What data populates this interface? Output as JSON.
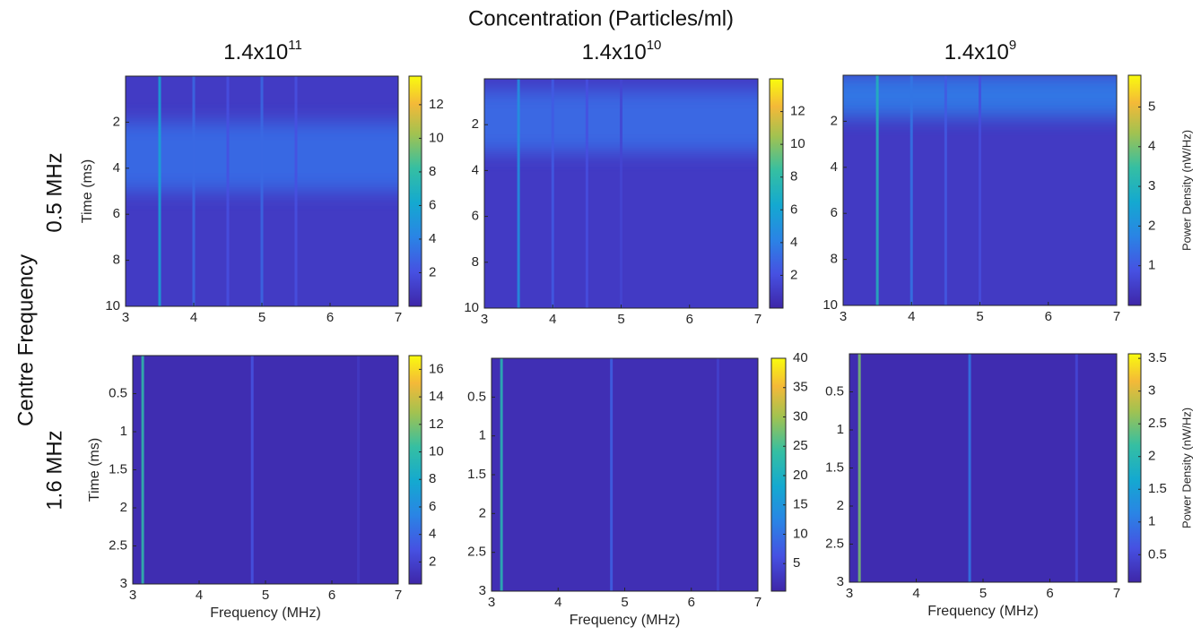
{
  "figure": {
    "title": "Concentration (Particles/ml)",
    "ylabel": "Centre Frequency",
    "columns": [
      {
        "base": "1.4x10",
        "exponent": "11"
      },
      {
        "base": "1.4x10",
        "exponent": "10"
      },
      {
        "base": "1.4x10",
        "exponent": "9"
      }
    ],
    "rows": [
      "0.5 MHz",
      "1.6 MHz"
    ]
  },
  "chart_data": [
    {
      "type": "heatmap",
      "colormap": "parula",
      "xlim": [
        3,
        7
      ],
      "xticks": [
        3,
        4,
        5,
        6,
        7
      ],
      "ylim": [
        0,
        10
      ],
      "y_reversed": true,
      "yticks": [
        2,
        4,
        6,
        8,
        10
      ],
      "ylabel": "Time (ms)",
      "clim": [
        0,
        13.7
      ],
      "cticks": [
        2,
        4,
        6,
        8,
        10,
        12
      ],
      "background": 1.0,
      "band": {
        "y": [
          2,
          5
        ],
        "value": 3
      },
      "streaks": {
        "x": [
          3.5,
          4.0,
          4.5,
          5.0,
          5.5
        ],
        "values": [
          6,
          3,
          2,
          3,
          2
        ]
      }
    },
    {
      "type": "heatmap",
      "colormap": "parula",
      "xlim": [
        3,
        7
      ],
      "xticks": [
        3,
        4,
        5,
        6,
        7
      ],
      "ylim": [
        0,
        10
      ],
      "y_reversed": true,
      "yticks": [
        2,
        4,
        6,
        8,
        10
      ],
      "clim": [
        0,
        14
      ],
      "cticks": [
        2,
        4,
        6,
        8,
        10,
        12
      ],
      "background": 1.0,
      "band": {
        "y": [
          0.5,
          3.2
        ],
        "value": 3
      },
      "streaks": {
        "x": [
          3.5,
          4.0,
          4.5,
          5.0
        ],
        "values": [
          5,
          2.5,
          2,
          1.5
        ]
      }
    },
    {
      "type": "heatmap",
      "colormap": "parula",
      "xlim": [
        3,
        7
      ],
      "xticks": [
        3,
        4,
        5,
        6,
        7
      ],
      "ylim": [
        0,
        10
      ],
      "y_reversed": true,
      "yticks": [
        2,
        4,
        6,
        8,
        10
      ],
      "clim": [
        0,
        5.8
      ],
      "cticks": [
        1,
        2,
        3,
        4,
        5
      ],
      "clabel": "Power Density (nW/Hz)",
      "background": 0.4,
      "band": {
        "y": [
          0,
          1.8
        ],
        "value": 1.5
      },
      "streaks": {
        "x": [
          3.5,
          4.0,
          4.5,
          5.0
        ],
        "values": [
          3,
          1.5,
          1,
          0.8
        ]
      }
    },
    {
      "type": "heatmap",
      "colormap": "parula",
      "xlim": [
        3,
        7
      ],
      "xticks": [
        3,
        4,
        5,
        6,
        7
      ],
      "ylim": [
        0,
        3
      ],
      "y_reversed": true,
      "yticks": [
        0.5,
        1,
        1.5,
        2,
        2.5,
        3
      ],
      "ylabel": "Time (ms)",
      "xlabel": "Frequency (MHz)",
      "clim": [
        0.4,
        17
      ],
      "cticks": [
        2,
        4,
        6,
        8,
        10,
        12,
        14,
        16
      ],
      "background": 0.8,
      "streaks": {
        "x": [
          3.15,
          4.8,
          6.4
        ],
        "values": [
          10,
          3,
          1.5
        ]
      }
    },
    {
      "type": "heatmap",
      "colormap": "parula",
      "xlim": [
        3,
        7
      ],
      "xticks": [
        3,
        4,
        5,
        6,
        7
      ],
      "ylim": [
        0,
        3
      ],
      "y_reversed": true,
      "yticks": [
        0.5,
        1,
        1.5,
        2,
        2.5,
        3
      ],
      "xlabel": "Frequency (MHz)",
      "clim": [
        0.3,
        40
      ],
      "cticks": [
        5,
        10,
        15,
        20,
        25,
        30,
        35,
        40
      ],
      "background": 1.5,
      "streaks": {
        "x": [
          3.15,
          4.8,
          6.4
        ],
        "values": [
          22,
          8,
          4
        ]
      }
    },
    {
      "type": "heatmap",
      "colormap": "parula",
      "xlim": [
        3,
        7
      ],
      "xticks": [
        3,
        4,
        5,
        6,
        7
      ],
      "ylim": [
        0,
        3
      ],
      "y_reversed": true,
      "yticks": [
        0.5,
        1,
        1.5,
        2,
        2.5,
        3
      ],
      "xlabel": "Frequency (MHz)",
      "clim": [
        0.08,
        3.57
      ],
      "cticks": [
        0.5,
        1,
        1.5,
        2,
        2.5,
        3,
        3.5
      ],
      "clabel": "Power Density (nW/Hz)",
      "background": 0.15,
      "streaks": {
        "x": [
          3.15,
          4.8,
          6.4
        ],
        "values": [
          2.5,
          1,
          0.5
        ]
      }
    }
  ]
}
